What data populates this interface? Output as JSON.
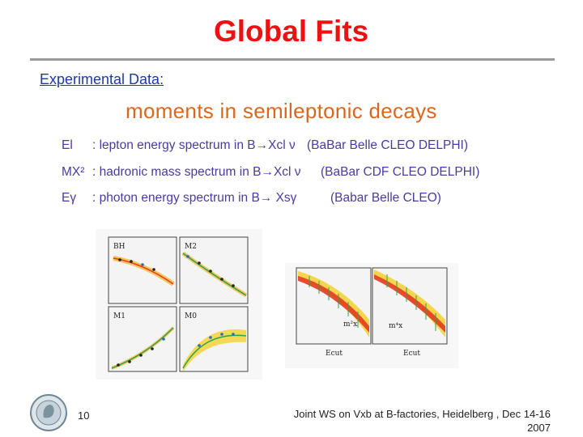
{
  "slide": {
    "title": "Global Fits",
    "subtitle": "Experimental Data:",
    "moments_heading": "moments in semileptonic decays",
    "rows": [
      {
        "symbol": "E_l",
        "symbol_text": "El",
        "description": ": lepton energy spectrum in B→Xcl ν",
        "experiments": "(BaBar Belle CLEO DELPHI)"
      },
      {
        "symbol": "M_X^2",
        "symbol_text": "MX²",
        "description": ": hadronic mass spectrum in B→Xcl ν",
        "experiments": "(BaBar CDF CLEO DELPHI)"
      },
      {
        "symbol": "E_γ",
        "symbol_text": "Eγ",
        "description": ": photon energy spectrum in B→ Xsγ",
        "experiments": "(Babar Belle CLEO)"
      }
    ],
    "left_figure": {
      "panels": [
        {
          "label": "BH"
        },
        {
          "label": "M2"
        },
        {
          "label": "M1"
        },
        {
          "label": "M0"
        }
      ]
    },
    "right_figure": {
      "panels": [
        {
          "label": "m²x",
          "xlabel": "Ecut"
        },
        {
          "label": "m⁴x",
          "xlabel": "Ecut"
        }
      ]
    },
    "footer": {
      "page_number": "10",
      "text_line1": "Joint WS on Vxb at B-factories, Heidelberg , Dec 14-16",
      "text_line2": "2007"
    },
    "colors": {
      "title": "#ee1111",
      "subtitle": "#1c3aa6",
      "heading": "#d9671f",
      "rows": "#4b3aa0",
      "band_yellow": "#f5d23c",
      "band_red": "#e53b1f",
      "fit_line": "#2aa44a"
    },
    "icons": [
      "university-seal-logo"
    ]
  }
}
